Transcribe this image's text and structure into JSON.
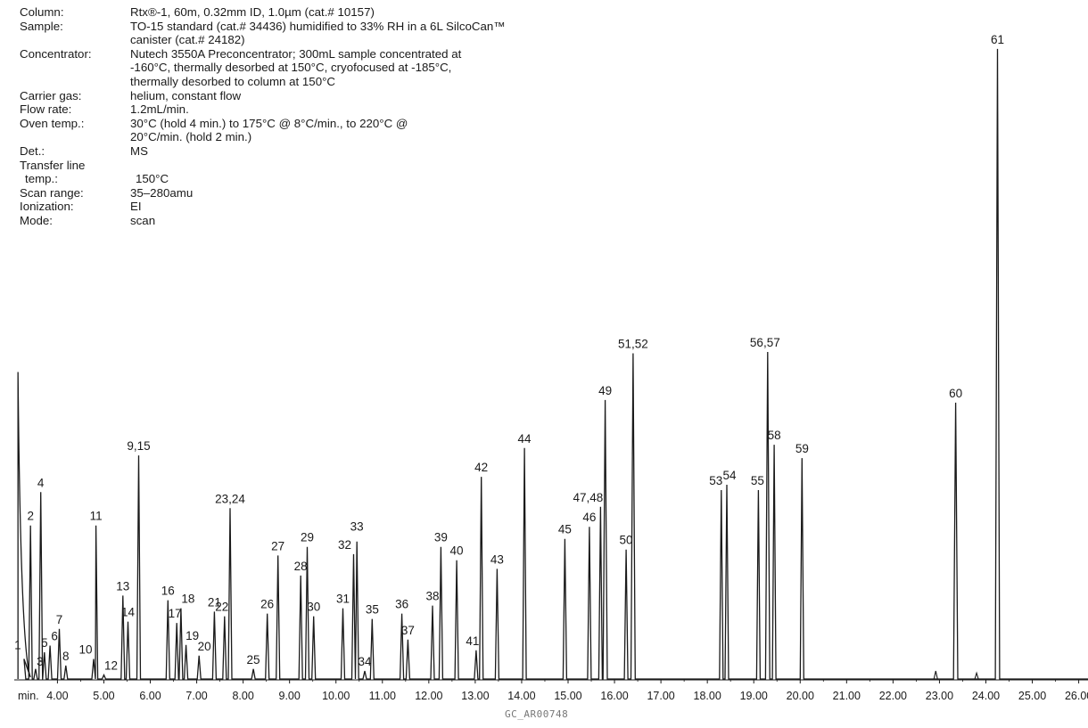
{
  "conditions": [
    {
      "label": "Column:",
      "lines": [
        "Rtx®-1, 60m, 0.32mm ID, 1.0µm (cat.# 10157)"
      ]
    },
    {
      "label": "Sample:",
      "lines": [
        "TO-15 standard (cat.# 34436) humidified to 33% RH in a 6L SilcoCan™",
        "canister (cat.# 24182)"
      ]
    },
    {
      "label": "Concentrator:",
      "lines": [
        "Nutech 3550A Preconcentrator; 300mL sample concentrated at",
        "-160°C, thermally desorbed at 150°C, cryofocused at -185°C,",
        "thermally desorbed to column at 150°C"
      ]
    },
    {
      "label": "Carrier gas:",
      "lines": [
        "helium, constant flow"
      ]
    },
    {
      "label": "Flow rate:",
      "lines": [
        "1.2mL/min."
      ]
    },
    {
      "label": "Oven temp.:",
      "lines": [
        "30°C (hold 4 min.) to 175°C @ 8°C/min., to 220°C @",
        "20°C/min. (hold 2 min.)"
      ]
    },
    {
      "label": "Det.:",
      "lines": [
        "MS"
      ]
    },
    {
      "label": "Transfer line",
      "lines": [
        ""
      ]
    },
    {
      "label": " temp.:",
      "lines": [
        "150°C"
      ]
    },
    {
      "label": "Scan range:",
      "lines": [
        "35–280amu"
      ]
    },
    {
      "label": "Ionization:",
      "lines": [
        "EI"
      ]
    },
    {
      "label": "Mode:",
      "lines": [
        "scan"
      ]
    }
  ],
  "chart_data": {
    "type": "line",
    "xlabel": "min.",
    "xlim": [
      3.07,
      26.2
    ],
    "ylim": [
      0,
      100
    ],
    "ticks": [
      "4.00",
      "5.00",
      "6.00",
      "7.00",
      "8.00",
      "9.00",
      "10.00",
      "11.00",
      "12.00",
      "13.00",
      "14.00",
      "15.00",
      "16.00",
      "17.00",
      "18.00",
      "19.00",
      "20.00",
      "21.00",
      "22.00",
      "23.00",
      "24.00",
      "25.00",
      "26.00"
    ],
    "solvent_front": {
      "x": 3.15,
      "height": 46
    },
    "peaks": [
      {
        "label": "1",
        "x": 3.28,
        "height": 3
      },
      {
        "label": "2",
        "x": 3.42,
        "height": 23
      },
      {
        "label": "3",
        "x": 3.53,
        "height": 1.5
      },
      {
        "label": "4",
        "x": 3.64,
        "height": 28
      },
      {
        "label": "5",
        "x": 3.72,
        "height": 4
      },
      {
        "label": "6",
        "x": 3.84,
        "height": 5
      },
      {
        "label": "7",
        "x": 4.04,
        "height": 7.5
      },
      {
        "label": "8",
        "x": 4.18,
        "height": 2
      },
      {
        "label": "10",
        "x": 4.78,
        "height": 3
      },
      {
        "label": "11",
        "x": 4.83,
        "height": 23
      },
      {
        "label": "12",
        "x": 5.0,
        "height": 0.6
      },
      {
        "label": "13",
        "x": 5.41,
        "height": 12.5
      },
      {
        "label": "14",
        "x": 5.52,
        "height": 8.6
      },
      {
        "label": "9,15",
        "x": 5.75,
        "height": 33.5
      },
      {
        "label": "16",
        "x": 6.38,
        "height": 11.8
      },
      {
        "label": "17",
        "x": 6.57,
        "height": 8.4
      },
      {
        "label": "18",
        "x": 6.66,
        "height": 10.6
      },
      {
        "label": "19",
        "x": 6.77,
        "height": 5.1
      },
      {
        "label": "20",
        "x": 7.05,
        "height": 3.5
      },
      {
        "label": "21",
        "x": 7.38,
        "height": 10.1
      },
      {
        "label": "22",
        "x": 7.6,
        "height": 9.4
      },
      {
        "label": "23,24",
        "x": 7.72,
        "height": 25.6
      },
      {
        "label": "25",
        "x": 8.22,
        "height": 1.5
      },
      {
        "label": "26",
        "x": 8.52,
        "height": 9.8
      },
      {
        "label": "27",
        "x": 8.75,
        "height": 18.5
      },
      {
        "label": "28",
        "x": 9.24,
        "height": 15.5
      },
      {
        "label": "29",
        "x": 9.38,
        "height": 19.8
      },
      {
        "label": "30",
        "x": 9.52,
        "height": 9.4
      },
      {
        "label": "31",
        "x": 10.15,
        "height": 10.6
      },
      {
        "label": "32",
        "x": 10.38,
        "height": 18.7
      },
      {
        "label": "33",
        "x": 10.45,
        "height": 20.6
      },
      {
        "label": "34",
        "x": 10.62,
        "height": 1.2
      },
      {
        "label": "35",
        "x": 10.78,
        "height": 9.0
      },
      {
        "label": "36",
        "x": 11.42,
        "height": 9.8
      },
      {
        "label": "37",
        "x": 11.55,
        "height": 5.9
      },
      {
        "label": "38",
        "x": 12.08,
        "height": 11.0
      },
      {
        "label": "39",
        "x": 12.26,
        "height": 19.8
      },
      {
        "label": "40",
        "x": 12.6,
        "height": 17.8
      },
      {
        "label": "41",
        "x": 13.02,
        "height": 4.3
      },
      {
        "label": "42",
        "x": 13.13,
        "height": 30.3
      },
      {
        "label": "43",
        "x": 13.47,
        "height": 16.5
      },
      {
        "label": "44",
        "x": 14.06,
        "height": 34.6
      },
      {
        "label": "45",
        "x": 14.93,
        "height": 21.0
      },
      {
        "label": "46",
        "x": 15.46,
        "height": 22.8
      },
      {
        "label": "47,48",
        "x": 15.7,
        "height": 25.8
      },
      {
        "label": "49",
        "x": 15.8,
        "height": 41.8
      },
      {
        "label": "50",
        "x": 16.25,
        "height": 19.4
      },
      {
        "label": "51,52",
        "x": 16.4,
        "height": 48.8
      },
      {
        "label": "53",
        "x": 18.3,
        "height": 28.3
      },
      {
        "label": "54",
        "x": 18.42,
        "height": 29.1
      },
      {
        "label": "55",
        "x": 19.1,
        "height": 28.3
      },
      {
        "label": "56,57",
        "x": 19.3,
        "height": 49.0
      },
      {
        "label": "58",
        "x": 19.44,
        "height": 35.1
      },
      {
        "label": "59",
        "x": 20.04,
        "height": 33.1
      },
      {
        "label": "60",
        "x": 23.35,
        "height": 41.4
      },
      {
        "label": "61",
        "x": 24.25,
        "height": 94.4
      }
    ]
  },
  "footer": "GC_AR00748"
}
